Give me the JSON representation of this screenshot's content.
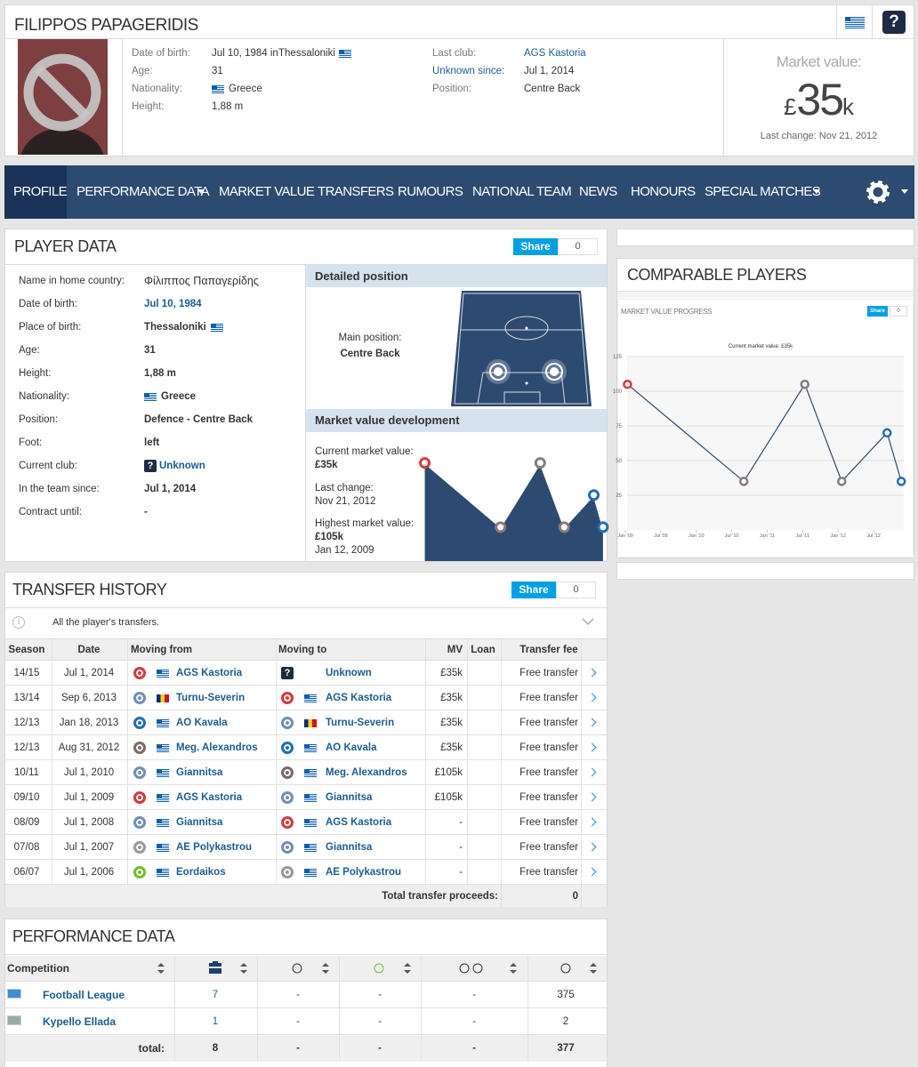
{
  "header": {
    "name": "FILIPPOS PAPAGERIDIS",
    "help": "?",
    "date_of_birth_label": "Date of birth:",
    "date_of_birth": "Jul 10, 1984 in",
    "birthplace": "Thessaloniki",
    "age_label": "Age:",
    "age": "31",
    "nationality_label": "Nationality:",
    "nationality": "Greece",
    "height_label": "Height:",
    "height": "1,88 m",
    "last_club_label": "Last club:",
    "last_club": "AGS Kastoria",
    "unknown_since_label": "Unknown since:",
    "unknown_since": "Jul 1, 2014",
    "position_label": "Position:",
    "position": "Centre Back",
    "market_value": {
      "label": "Market value:",
      "currency": "£",
      "amount": "35",
      "unit": "k",
      "last_change": "Last change: Nov 21, 2012"
    }
  },
  "nav": {
    "items": [
      "PROFILE",
      "PERFORMANCE DATA",
      "MARKET VALUE",
      "TRANSFERS",
      "RUMOURS",
      "NATIONAL TEAM",
      "NEWS",
      "HONOURS",
      "SPECIAL MATCHES"
    ],
    "active": 0
  },
  "player_data": {
    "title": "PLAYER DATA",
    "share": "Share",
    "share_count": "0",
    "rows": [
      {
        "label": "Name in home country:",
        "value": "Φίλιππος Παπαγερίδης",
        "plain": true
      },
      {
        "label": "Date of birth:",
        "value": "Jul 10, 1984",
        "link": true
      },
      {
        "label": "Place of birth:",
        "value": "Thessaloniki",
        "flag": "after"
      },
      {
        "label": "Age:",
        "value": "31"
      },
      {
        "label": "Height:",
        "value": "1,88 m"
      },
      {
        "label": "Nationality:",
        "value": "Greece",
        "flag": "before"
      },
      {
        "label": "Position:",
        "value": "Defence - Centre Back"
      },
      {
        "label": "Foot:",
        "value": "left"
      },
      {
        "label": "Current club:",
        "value": "Unknown",
        "link": true,
        "icon": "?"
      },
      {
        "label": "In the team since:",
        "value": "Jul 1, 2014"
      },
      {
        "label": "Contract until:",
        "value": "-"
      }
    ],
    "detailed_position": {
      "title": "Detailed position",
      "main_label": "Main position:",
      "main": "Centre Back"
    },
    "market_value_development": {
      "title": "Market value development",
      "current_label": "Current market value:",
      "current": "£35k",
      "last_change_label": "Last change:",
      "last_change": "Nov 21, 2012",
      "highest_label": "Highest market value:",
      "highest": "£105k",
      "highest_date": "Jan 12, 2009"
    }
  },
  "comparable_players": {
    "title": "COMPARABLE PLAYERS",
    "share": "Share",
    "share_count": "0"
  },
  "chart_data": {
    "type": "line",
    "title": "MARKET VALUE PROGRESS",
    "subtitle": "Current market value: £35k",
    "x": [
      2009.03,
      2010.67,
      2011.53,
      2012.05,
      2012.69,
      2012.89
    ],
    "values": [
      105,
      35,
      105,
      35,
      70,
      35
    ],
    "color": "#2d4a70",
    "marker_colors": [
      "#d9383a",
      "#8a7a7a",
      "#8a7a7a",
      "#8a7a7a",
      "#1f6fb5",
      "#1f6fb5"
    ],
    "xlim": [
      2009,
      2012.95
    ],
    "xticks": [
      {
        "value": 2009,
        "label": "Jan '09"
      },
      {
        "value": 2009.5,
        "label": "Jul '09"
      },
      {
        "value": 2010,
        "label": "Jan '10"
      },
      {
        "value": 2010.5,
        "label": "Jul '10"
      },
      {
        "value": 2011,
        "label": "Jan '11"
      },
      {
        "value": 2011.5,
        "label": "Jul '11"
      },
      {
        "value": 2012,
        "label": "Jan '12"
      },
      {
        "value": 2012.5,
        "label": "Jul '12"
      }
    ],
    "ylim": [
      0,
      125
    ],
    "yticks": [
      25,
      50,
      75,
      100,
      125
    ],
    "grid": true
  },
  "club_styles": {
    "AGS Kastoria": {
      "color": "#d9383a",
      "flag": "gr"
    },
    "Unknown": {
      "color": "#1d2c44",
      "icon": "?"
    },
    "Turnu-Severin": {
      "color": "#6d8fb8",
      "flag": "ro"
    },
    "AO Kavala": {
      "color": "#1f6fb5",
      "flag": "gr"
    },
    "Meg. Alexandros": {
      "color": "#7a6a6a",
      "flag": "gr"
    },
    "Giannitsa": {
      "color": "#6d8fb8",
      "flag": "gr"
    },
    "AE Polykastrou": {
      "color": "#999999",
      "flag": "gr"
    },
    "Eordaikos": {
      "color": "#6cbf2a",
      "flag": "gr"
    }
  },
  "transfer_history": {
    "title": "TRANSFER HISTORY",
    "share": "Share",
    "share_count": "0",
    "info": "All the player's transfers.",
    "columns": [
      "Season",
      "Date",
      "Moving from",
      "Moving to",
      "MV",
      "Loan",
      "Transfer fee"
    ],
    "rows": [
      {
        "season": "14/15",
        "date": "Jul 1, 2014",
        "from": "AGS Kastoria",
        "to": "Unknown",
        "mv": "£35k",
        "fee": "Free transfer"
      },
      {
        "season": "13/14",
        "date": "Sep 6, 2013",
        "from": "Turnu-Severin",
        "to": "AGS Kastoria",
        "mv": "£35k",
        "fee": "Free transfer"
      },
      {
        "season": "12/13",
        "date": "Jan 18, 2013",
        "from": "AO Kavala",
        "to": "Turnu-Severin",
        "mv": "£35k",
        "fee": "Free transfer"
      },
      {
        "season": "12/13",
        "date": "Aug 31, 2012",
        "from": "Meg. Alexandros",
        "to": "AO Kavala",
        "mv": "£35k",
        "fee": "Free transfer"
      },
      {
        "season": "10/11",
        "date": "Jul 1, 2010",
        "from": "Giannitsa",
        "to": "Meg. Alexandros",
        "mv": "£105k",
        "fee": "Free transfer"
      },
      {
        "season": "09/10",
        "date": "Jul 1, 2009",
        "from": "AGS Kastoria",
        "to": "Giannitsa",
        "mv": "£105k",
        "fee": "Free transfer"
      },
      {
        "season": "08/09",
        "date": "Jul 1, 2008",
        "from": "Giannitsa",
        "to": "AGS Kastoria",
        "mv": "-",
        "fee": "Free transfer"
      },
      {
        "season": "07/08",
        "date": "Jul 1, 2007",
        "from": "AE Polykastrou",
        "to": "Giannitsa",
        "mv": "-",
        "fee": "Free transfer"
      },
      {
        "season": "06/07",
        "date": "Jul 1, 2006",
        "from": "Eordaikos",
        "to": "AE Polykastrou",
        "mv": "-",
        "fee": "Free transfer"
      }
    ],
    "total_label": "Total transfer proceeds:",
    "total": "0"
  },
  "performance_data": {
    "title": "PERFORMANCE DATA",
    "columns": [
      "Competition"
    ],
    "rows": [
      {
        "competition": "Football League",
        "values": [
          "7",
          "-",
          "-",
          "-",
          "375"
        ]
      },
      {
        "competition": "Kypello Ellada",
        "values": [
          "1",
          "-",
          "-",
          "-",
          "2"
        ]
      }
    ],
    "total_label": "total:",
    "totals": [
      "8",
      "-",
      "-",
      "-",
      "377"
    ]
  }
}
